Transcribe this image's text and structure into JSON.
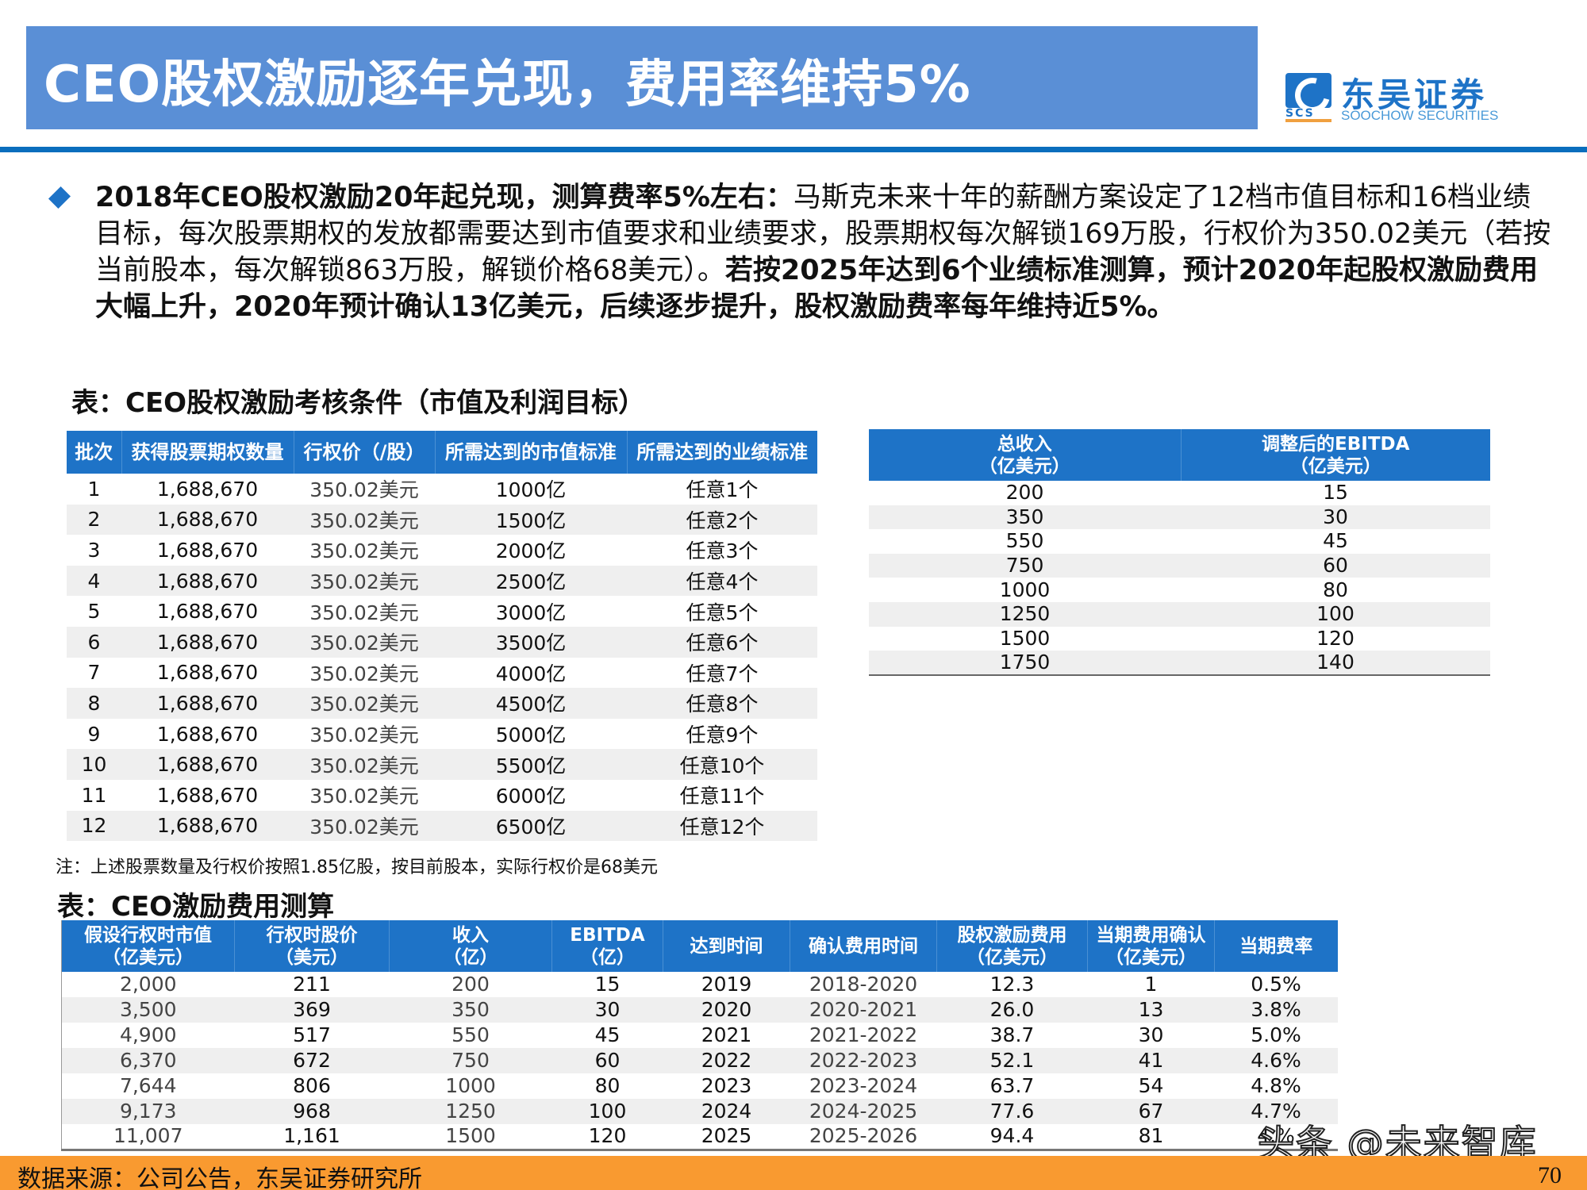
{
  "header": {
    "title": "CEO股权激励逐年兑现，费用率维持5%",
    "logo": {
      "cn": "东吴证券",
      "en": "SOOCHOW SECURITIES",
      "abbr": "SCS"
    }
  },
  "summary": {
    "bold_lead": "2018年CEO股权激励20年起兑现，测算费率5%左右：",
    "normal_text": "马斯克未来十年的薪酬方案设定了12档市值目标和16档业绩目标，每次股票期权的发放都需要达到市值要求和业绩要求，股票期权每次解锁169万股，行权价为350.02美元（若按当前股本，每次解锁863万股，解锁价格68美元）。",
    "bold_tail": "若按2025年达到6个业绩标准测算，预计2020年起股权激励费用大幅上升，2020年预计确认13亿美元，后续逐步提升，股权激励费率每年维持近5%。"
  },
  "table1": {
    "caption": "表：CEO股权激励考核条件（市值及利润目标）",
    "headers": [
      "批次",
      "获得股票期权数量",
      "行权价（/股）",
      "所需达到的市值标准",
      "所需达到的业绩标准"
    ],
    "rows": [
      [
        "1",
        "1,688,670",
        "350.02美元",
        "1000亿",
        "任意1个"
      ],
      [
        "2",
        "1,688,670",
        "350.02美元",
        "1500亿",
        "任意2个"
      ],
      [
        "3",
        "1,688,670",
        "350.02美元",
        "2000亿",
        "任意3个"
      ],
      [
        "4",
        "1,688,670",
        "350.02美元",
        "2500亿",
        "任意4个"
      ],
      [
        "5",
        "1,688,670",
        "350.02美元",
        "3000亿",
        "任意5个"
      ],
      [
        "6",
        "1,688,670",
        "350.02美元",
        "3500亿",
        "任意6个"
      ],
      [
        "7",
        "1,688,670",
        "350.02美元",
        "4000亿",
        "任意7个"
      ],
      [
        "8",
        "1,688,670",
        "350.02美元",
        "4500亿",
        "任意8个"
      ],
      [
        "9",
        "1,688,670",
        "350.02美元",
        "5000亿",
        "任意9个"
      ],
      [
        "10",
        "1,688,670",
        "350.02美元",
        "5500亿",
        "任意10个"
      ],
      [
        "11",
        "1,688,670",
        "350.02美元",
        "6000亿",
        "任意11个"
      ],
      [
        "12",
        "1,688,670",
        "350.02美元",
        "6500亿",
        "任意12个"
      ]
    ],
    "note": "注：上述股票数量及行权价按照1.85亿股，按目前股本，实际行权价是68美元"
  },
  "table2": {
    "headers": [
      {
        "line1": "总收入",
        "line2": "（亿美元）"
      },
      {
        "line1": "调整后的EBITDA",
        "line2": "（亿美元）"
      }
    ],
    "rows": [
      [
        "200",
        "15"
      ],
      [
        "350",
        "30"
      ],
      [
        "550",
        "45"
      ],
      [
        "750",
        "60"
      ],
      [
        "1000",
        "80"
      ],
      [
        "1250",
        "100"
      ],
      [
        "1500",
        "120"
      ],
      [
        "1750",
        "140"
      ]
    ]
  },
  "table3": {
    "caption": "表：CEO激励费用测算",
    "headers": [
      {
        "line1": "假设行权时市值",
        "line2": "（亿美元）"
      },
      {
        "line1": "行权时股价",
        "line2": "（美元）"
      },
      {
        "line1": "收入",
        "line2": "（亿）"
      },
      {
        "line1": "EBITDA",
        "line2": "（亿）"
      },
      {
        "line1": "达到时间",
        "line2": ""
      },
      {
        "line1": "确认费用时间",
        "line2": ""
      },
      {
        "line1": "股权激励费用",
        "line2": "（亿美元）"
      },
      {
        "line1": "当期费用确认",
        "line2": "（亿美元）"
      },
      {
        "line1": "当期费率",
        "line2": ""
      }
    ],
    "rows": [
      [
        "2,000",
        "211",
        "200",
        "15",
        "2019",
        "2018-2020",
        "12.3",
        "1",
        "0.5%"
      ],
      [
        "3,500",
        "369",
        "350",
        "30",
        "2020",
        "2020-2021",
        "26.0",
        "13",
        "3.8%"
      ],
      [
        "4,900",
        "517",
        "550",
        "45",
        "2021",
        "2021-2022",
        "38.7",
        "30",
        "5.0%"
      ],
      [
        "6,370",
        "672",
        "750",
        "60",
        "2022",
        "2022-2023",
        "52.1",
        "41",
        "4.6%"
      ],
      [
        "7,644",
        "806",
        "1000",
        "80",
        "2023",
        "2023-2024",
        "63.7",
        "54",
        "4.8%"
      ],
      [
        "9,173",
        "968",
        "1250",
        "100",
        "2024",
        "2024-2025",
        "77.6",
        "67",
        "4.7%"
      ],
      [
        "11,007",
        "1,161",
        "1500",
        "120",
        "2025",
        "2025-2026",
        "94.4",
        "81",
        "4.%"
      ]
    ]
  },
  "watermark": "头条 @未来智库",
  "footer": {
    "source": "数据来源：公司公告，东吴证券研究所",
    "page": "70"
  },
  "colors": {
    "title_bar": "#5a8fd6",
    "table_header": "#1e73c7",
    "rule": "#0a6ebd",
    "footer": "#f99a30",
    "row_alt": "#efefef"
  }
}
